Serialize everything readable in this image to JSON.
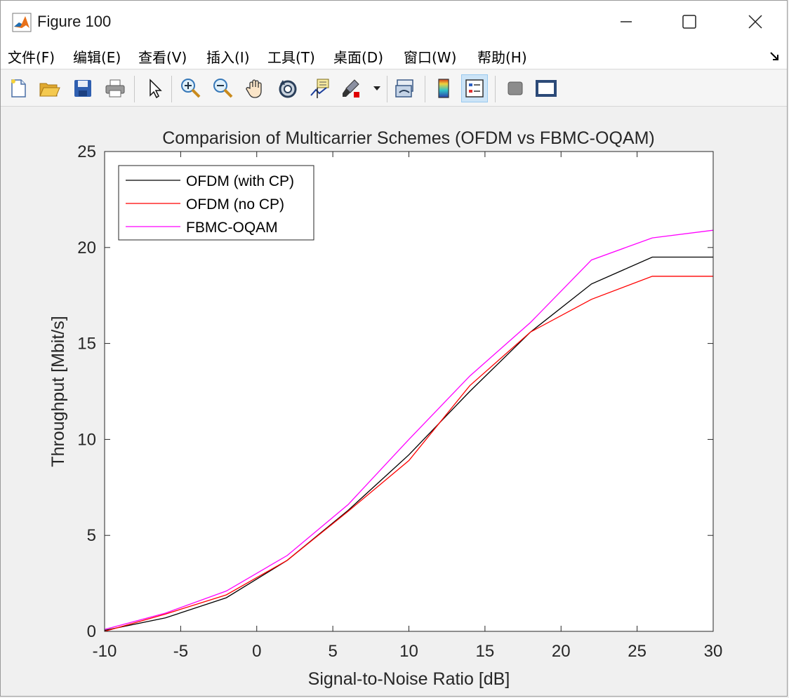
{
  "window": {
    "title": "Figure 100"
  },
  "menubar": {
    "items": [
      {
        "label": "文件(F)",
        "key": "F"
      },
      {
        "label": "编辑(E)",
        "key": "E"
      },
      {
        "label": "查看(V)",
        "key": "V"
      },
      {
        "label": "插入(I)",
        "key": "I"
      },
      {
        "label": "工具(T)",
        "key": "T"
      },
      {
        "label": "桌面(D)",
        "key": "D"
      },
      {
        "label": "窗口(W)",
        "key": "W"
      },
      {
        "label": "帮助(H)",
        "key": "H"
      }
    ]
  },
  "toolbar": {
    "buttons": [
      {
        "name": "new-figure-icon"
      },
      {
        "name": "open-file-icon"
      },
      {
        "name": "save-icon"
      },
      {
        "name": "print-icon"
      },
      {
        "name": "edit-plot-arrow-icon"
      },
      {
        "name": "zoom-in-icon"
      },
      {
        "name": "zoom-out-icon"
      },
      {
        "name": "pan-hand-icon"
      },
      {
        "name": "rotate-3d-icon"
      },
      {
        "name": "data-cursor-icon"
      },
      {
        "name": "brush-icon"
      },
      {
        "name": "link-plot-icon"
      },
      {
        "name": "insert-colorbar-icon"
      },
      {
        "name": "insert-legend-icon",
        "active": true
      },
      {
        "name": "hide-plot-tools-icon"
      },
      {
        "name": "show-plot-tools-icon"
      }
    ]
  },
  "chart_data": {
    "type": "line",
    "title": "Comparision of Multicarrier Schemes (OFDM vs FBMC-OQAM)",
    "xlabel": "Signal-to-Noise Ratio [dB]",
    "ylabel": "Throughput [Mbit/s]",
    "xlim": [
      -10,
      30
    ],
    "ylim": [
      0,
      25
    ],
    "xticks": [
      -10,
      -5,
      0,
      5,
      10,
      15,
      20,
      25,
      30
    ],
    "yticks": [
      0,
      5,
      10,
      15,
      20,
      25
    ],
    "grid": false,
    "legend_position": "top-left",
    "x": [
      -10,
      -6,
      -2,
      2,
      6,
      10,
      14,
      18,
      22,
      26,
      30
    ],
    "series": [
      {
        "name": "OFDM (with CP)",
        "color": "#000000",
        "values": [
          0.05,
          0.7,
          1.75,
          3.7,
          6.3,
          9.2,
          12.5,
          15.6,
          18.1,
          19.5,
          19.5
        ]
      },
      {
        "name": "OFDM (no CP)",
        "color": "#ff0000",
        "values": [
          0.0,
          0.9,
          1.9,
          3.7,
          6.25,
          8.9,
          12.8,
          15.6,
          17.3,
          18.5,
          18.5
        ]
      },
      {
        "name": "FBMC-OQAM",
        "color": "#ff00ff",
        "values": [
          0.1,
          0.95,
          2.1,
          3.95,
          6.6,
          10.0,
          13.3,
          16.1,
          19.35,
          20.5,
          20.9
        ]
      }
    ]
  }
}
